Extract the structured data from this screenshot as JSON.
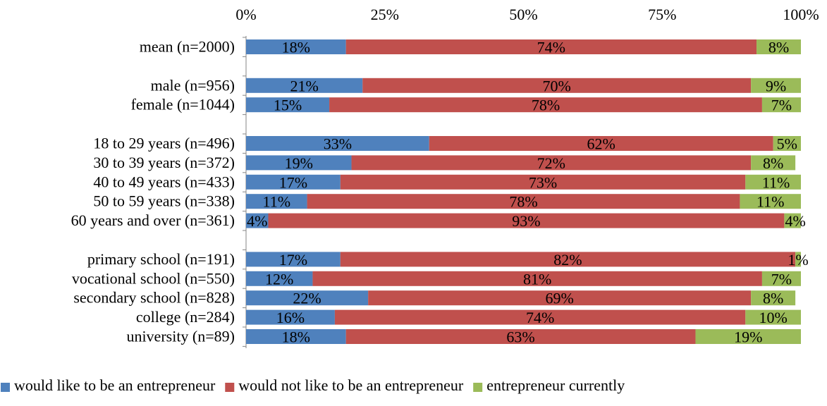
{
  "chart_data": {
    "type": "bar",
    "orientation": "horizontal",
    "stacked": true,
    "percent": true,
    "title": "",
    "xlabel": "",
    "ylabel": "",
    "xlim": [
      0,
      100
    ],
    "x_ticks": [
      "0%",
      "25%",
      "50%",
      "75%",
      "100%"
    ],
    "grid": false,
    "legend_position": "bottom",
    "categories": [
      "mean (n=2000)",
      "",
      "male (n=956)",
      "female (n=1044)",
      "",
      "18 to 29 years (n=496)",
      "30 to 39 years (n=372)",
      "40 to 49 years (n=433)",
      "50 to 59 years (n=338)",
      "60 years and over  (n=361)",
      "",
      "primary school (n=191)",
      "vocational school (n=550)",
      "secondary school (n=828)",
      "college (n=284)",
      "university (n=89)"
    ],
    "series": [
      {
        "name": "would like to be an entrepreneur",
        "color": "#4F81BD",
        "values": [
          18,
          null,
          21,
          15,
          null,
          33,
          19,
          17,
          11,
          4,
          null,
          17,
          12,
          22,
          16,
          18
        ],
        "labels": [
          "18%",
          "",
          "21%",
          "15%",
          "",
          "33%",
          "19%",
          "17%",
          "11%",
          "4%",
          "",
          "17%",
          "12%",
          "22%",
          "16%",
          "18%"
        ]
      },
      {
        "name": "would not like to be an entrepreneur",
        "color": "#C0504D",
        "values": [
          74,
          null,
          70,
          78,
          null,
          62,
          72,
          73,
          78,
          93,
          null,
          82,
          81,
          69,
          74,
          63
        ],
        "labels": [
          "74%",
          "",
          "70%",
          "78%",
          "",
          "62%",
          "72%",
          "73%",
          "78%",
          "93%",
          "",
          "82%",
          "81%",
          "69%",
          "74%",
          "63%"
        ]
      },
      {
        "name": "entrepreneur currently",
        "color": "#9BBB59",
        "values": [
          8,
          null,
          9,
          7,
          null,
          5,
          8,
          11,
          11,
          4,
          null,
          1,
          7,
          8,
          10,
          19
        ],
        "labels": [
          "8%",
          "",
          "9%",
          "7%",
          "",
          "5%",
          "8%",
          "11%",
          "11%",
          "4%",
          "",
          "1%",
          "7%",
          "8%",
          "10%",
          "19%"
        ]
      }
    ]
  }
}
